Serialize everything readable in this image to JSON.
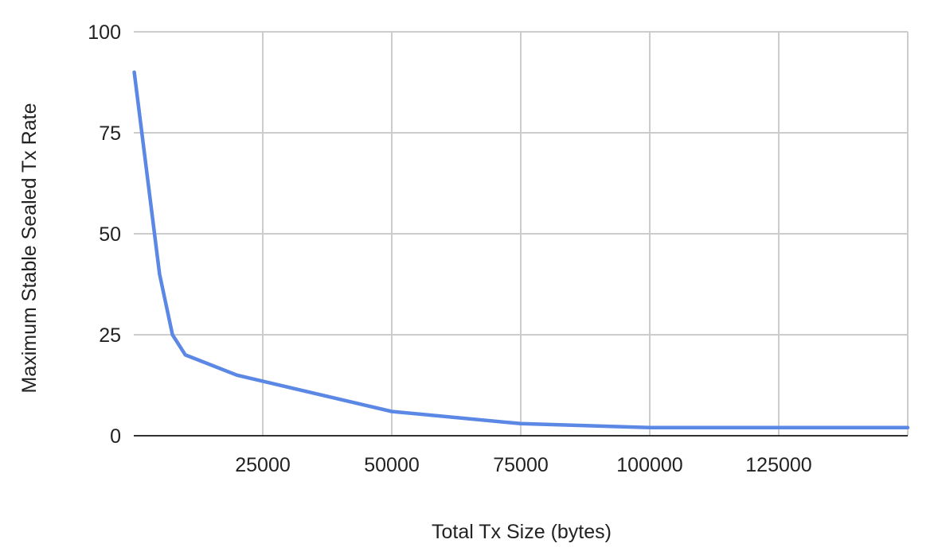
{
  "chart_data": {
    "type": "line",
    "title": "",
    "xlabel": "Total Tx Size (bytes)",
    "ylabel": "Maximum Stable Sealed Tx Rate",
    "xlim": [
      0,
      150000
    ],
    "ylim": [
      0,
      100
    ],
    "x_ticks": [
      25000,
      50000,
      75000,
      100000,
      125000
    ],
    "x_tick_labels": [
      "25000",
      "50000",
      "75000",
      "100000",
      "125000"
    ],
    "y_ticks": [
      0,
      25,
      50,
      75,
      100
    ],
    "y_tick_labels": [
      "0",
      "25",
      "50",
      "75",
      "100"
    ],
    "grid": true,
    "legend": "none",
    "series": [
      {
        "color": "#5b87e5",
        "x": [
          100,
          5000,
          7500,
          10000,
          20000,
          50000,
          75000,
          100000,
          125000,
          150000
        ],
        "y": [
          90,
          40,
          25,
          20,
          15,
          6,
          3,
          2,
          2,
          2
        ]
      }
    ]
  },
  "colors": {
    "grid": "#cccccc",
    "axis": "#333333",
    "text": "#222222"
  }
}
